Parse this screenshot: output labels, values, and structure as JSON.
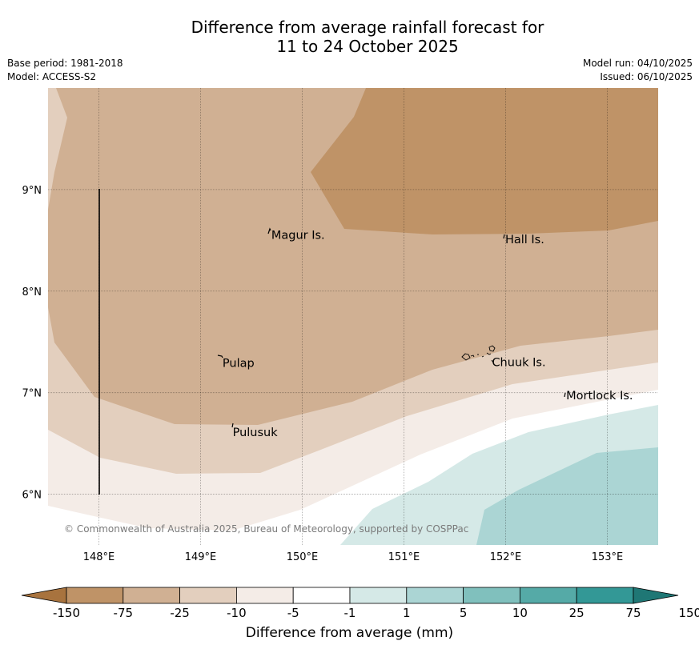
{
  "title": {
    "line1": "Difference from average rainfall forecast for",
    "line2": "11 to 24 October 2025"
  },
  "meta_left": {
    "base_period": "Base period: 1981-2018",
    "model": "Model: ACCESS-S2"
  },
  "meta_right": {
    "model_run": "Model run: 04/10/2025",
    "issued": "Issued: 06/10/2025"
  },
  "map": {
    "lon_range": [
      147.5,
      153.5
    ],
    "lat_range": [
      5.5,
      10.0
    ],
    "lon_ticks": [
      {
        "value": 148,
        "label": "148°E"
      },
      {
        "value": 149,
        "label": "149°E"
      },
      {
        "value": 150,
        "label": "150°E"
      },
      {
        "value": 151,
        "label": "151°E"
      },
      {
        "value": 152,
        "label": "152°E"
      },
      {
        "value": 153,
        "label": "153°E"
      }
    ],
    "lat_ticks": [
      {
        "value": 9,
        "label": "9°N"
      },
      {
        "value": 8,
        "label": "8°N"
      },
      {
        "value": 7,
        "label": "7°N"
      },
      {
        "value": 6,
        "label": "6°N"
      }
    ],
    "places": [
      {
        "name": "Magur Is.",
        "lon": 149.68,
        "lat": 8.56
      },
      {
        "name": "Hall Is.",
        "lon": 151.98,
        "lat": 8.52
      },
      {
        "name": "Pulap",
        "lon": 149.2,
        "lat": 7.3
      },
      {
        "name": "Chuuk Is.",
        "lon": 151.85,
        "lat": 7.31
      },
      {
        "name": "Mortlock Is.",
        "lon": 152.58,
        "lat": 6.98
      },
      {
        "name": "Pulusuk",
        "lon": 149.3,
        "lat": 6.62
      }
    ],
    "copyright": "© Commonwealth of Australia 2025, Bureau of Meteorology, supported by COSPPac"
  },
  "colorbar": {
    "title": "Difference from average (mm)",
    "tick_labels": [
      "-150",
      "-75",
      "-25",
      "-10",
      "-5",
      "-1",
      "1",
      "5",
      "10",
      "25",
      "75",
      "150"
    ],
    "colors": [
      "#a8733e",
      "#bf9367",
      "#d0b093",
      "#e3cfbe",
      "#f4ece7",
      "#ffffff",
      "#d5e9e7",
      "#abd5d4",
      "#80c0bd",
      "#55aaa7",
      "#339896",
      "#1f7775"
    ]
  }
}
